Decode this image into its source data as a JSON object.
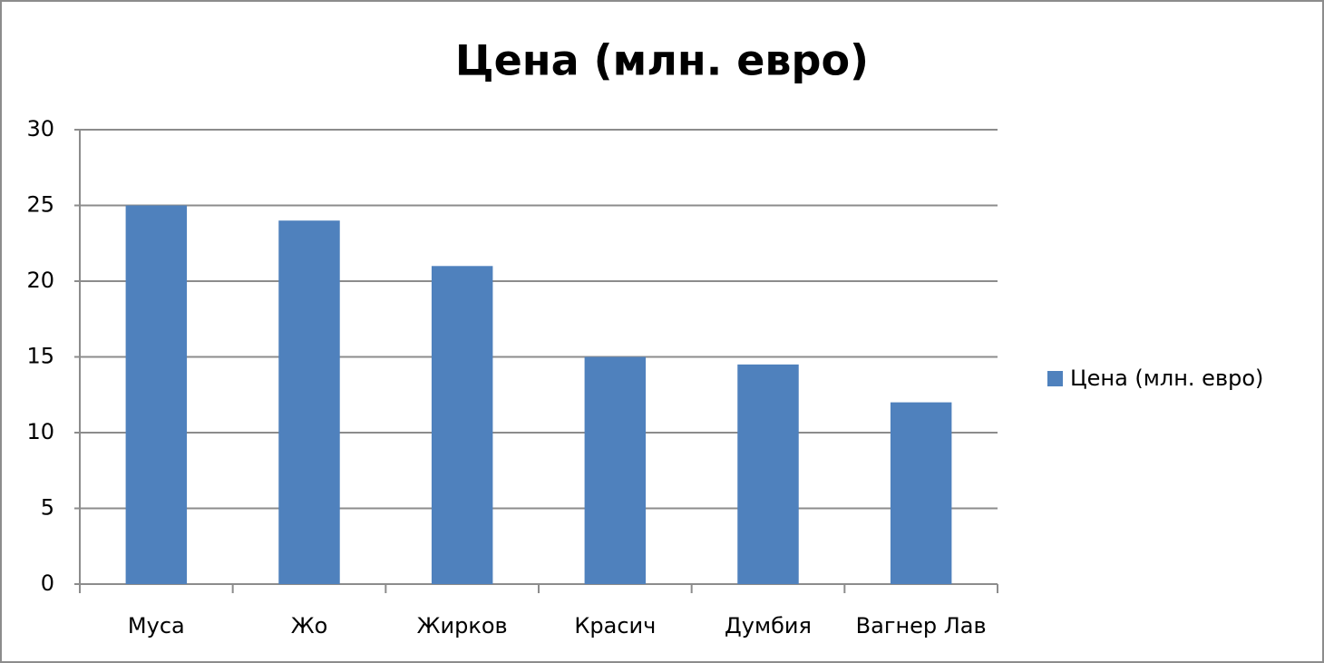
{
  "chart_data": {
    "type": "bar",
    "title": "Цена (млн. евро)",
    "categories": [
      "Муса",
      "Жо",
      "Жирков",
      "Красич",
      "Думбия",
      "Вагнер Лав"
    ],
    "series": [
      {
        "name": "Цена (млн. евро)",
        "color": "#4f81bd",
        "values": [
          25,
          24,
          21,
          15,
          14.5,
          12
        ]
      }
    ],
    "ylim": [
      0,
      30
    ],
    "yticks": [
      0,
      5,
      10,
      15,
      20,
      25,
      30
    ],
    "grid": true,
    "legend": "right"
  }
}
